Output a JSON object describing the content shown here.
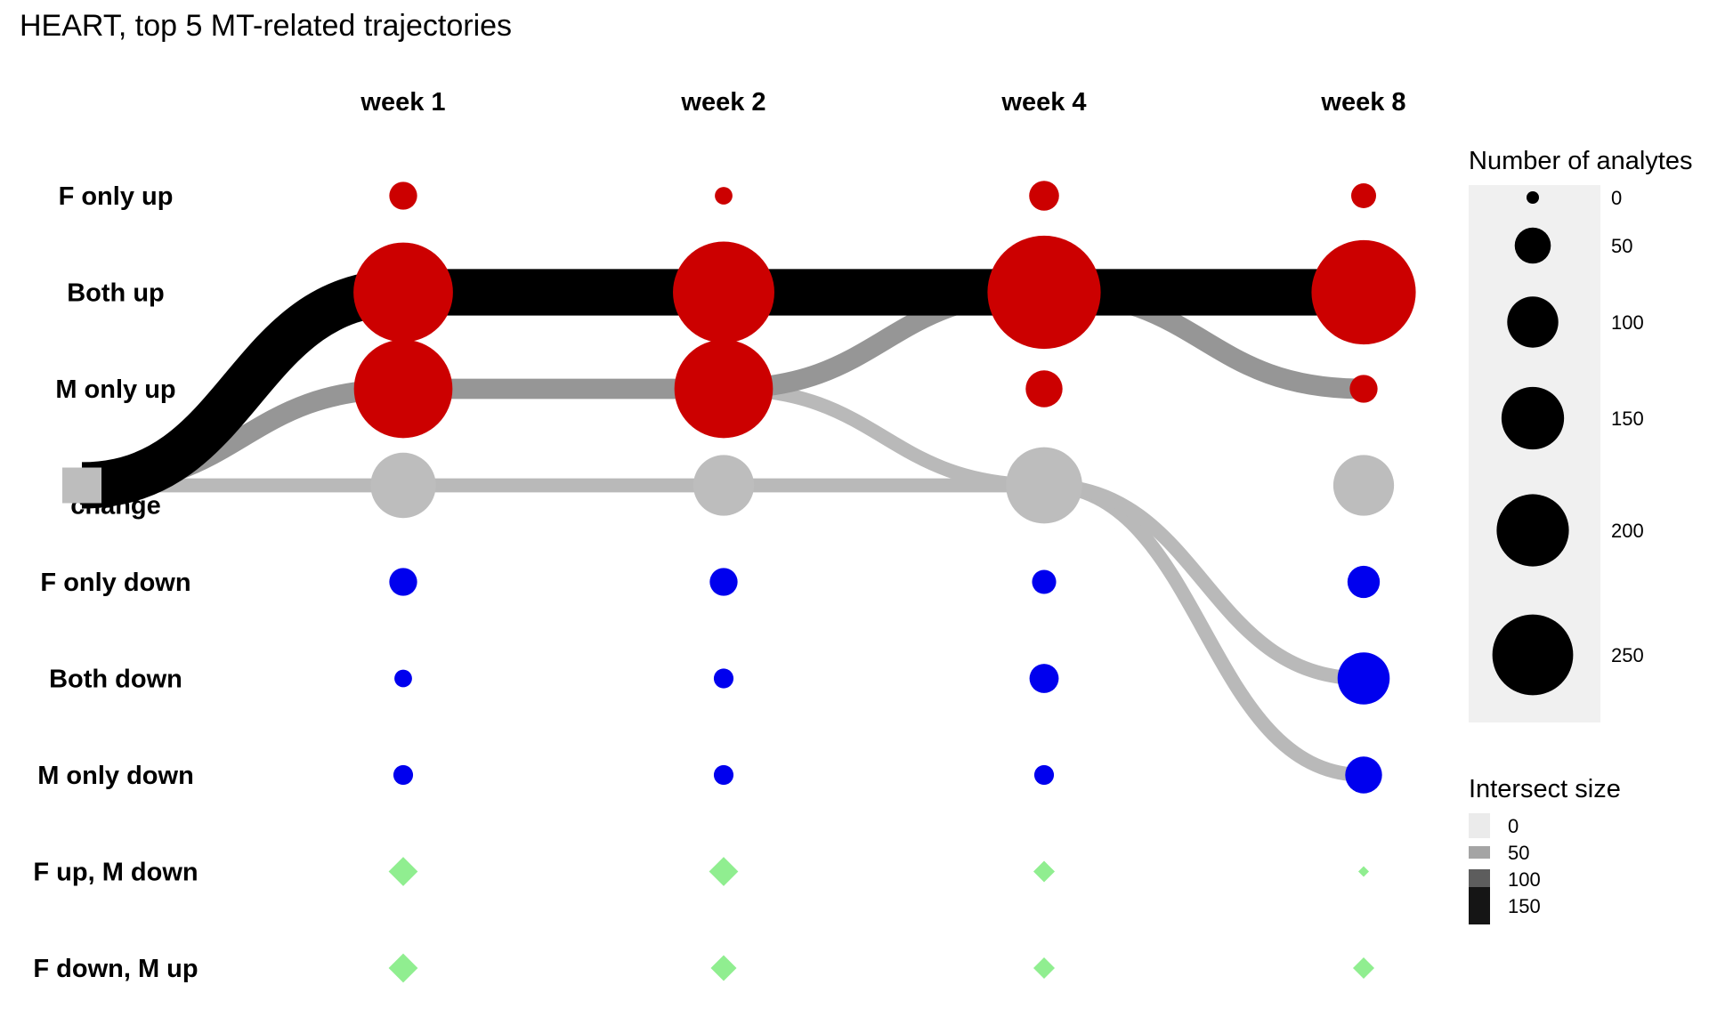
{
  "chart_data": {
    "type": "bubble-alluvial",
    "title": "HEART, top 5 MT-related trajectories",
    "columns": [
      "week 1",
      "week 2",
      "week 4",
      "week 8"
    ],
    "rows": [
      "F only up",
      "Both up",
      "M only up",
      "No change",
      "F only down",
      "Both down",
      "M only down",
      "F up, M down",
      "F down, M up"
    ],
    "row_colors": {
      "F only up": "#cc0000",
      "Both up": "#cc0000",
      "M only up": "#cc0000",
      "No change": "#bdbdbd",
      "F only down": "#0000ee",
      "Both down": "#0000ee",
      "M only down": "#0000ee",
      "F up, M down": "#90ee90",
      "F down, M up": "#90ee90"
    },
    "diamond_rows": [
      "F up, M down",
      "F down, M up"
    ],
    "analyte_counts": [
      [
        20,
        8,
        23,
        16
      ],
      [
        255,
        265,
        330,
        280
      ],
      [
        250,
        250,
        35,
        20
      ],
      [
        110,
        95,
        150,
        95
      ],
      [
        20,
        20,
        15,
        27
      ],
      [
        8,
        10,
        22,
        70
      ],
      [
        10,
        10,
        10,
        35
      ],
      [
        3,
        3,
        1,
        0
      ],
      [
        3,
        2,
        1,
        1
      ]
    ],
    "trajectories": [
      {
        "path": [
          "No change",
          "Both up",
          "Both up",
          "Both up",
          "Both up"
        ],
        "intersect_size": 165
      },
      {
        "path": [
          "No change",
          "M only up",
          "M only up",
          "Both up",
          "M only up"
        ],
        "intersect_size": 60
      },
      {
        "path": [
          "No change",
          "M only up",
          "M only up",
          "No change",
          "M only down"
        ],
        "intersect_size": 35
      },
      {
        "path": [
          "No change",
          "No change",
          "No change",
          "No change",
          "Both down"
        ],
        "intersect_size": 35
      },
      {
        "path": [
          "No change",
          "M only up",
          "M only up",
          "No change",
          "Both down"
        ],
        "intersect_size": 25
      }
    ],
    "size_legend": {
      "title": "Number of analytes",
      "breaks": [
        0,
        50,
        100,
        150,
        200,
        250
      ],
      "labels": [
        "0",
        "50",
        "100",
        "150",
        "200",
        "250"
      ]
    },
    "color_legend": {
      "title": "Intersect size",
      "breaks": [
        0,
        50,
        100,
        150
      ],
      "labels": [
        "0",
        "50",
        "100",
        "150"
      ],
      "max": 165
    }
  }
}
